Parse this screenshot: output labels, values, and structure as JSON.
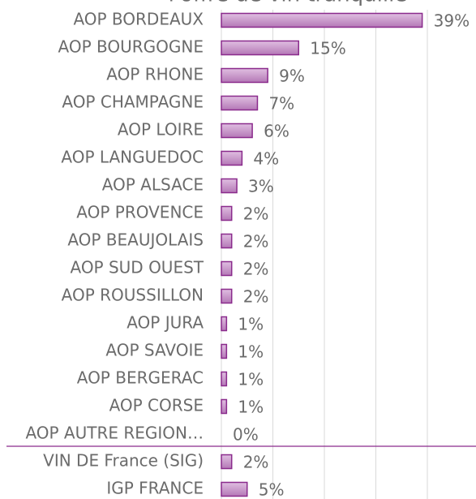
{
  "chart_data": {
    "type": "bar",
    "orientation": "horizontal",
    "title": "l'offre de vin tranquille",
    "categories": [
      "AOP BORDEAUX",
      "AOP BOURGOGNE",
      "AOP RHONE",
      "AOP CHAMPAGNE",
      "AOP LOIRE",
      "AOP LANGUEDOC",
      "AOP ALSACE",
      "AOP PROVENCE",
      "AOP BEAUJOLAIS",
      "AOP SUD OUEST",
      "AOP ROUSSILLON",
      "AOP JURA",
      "AOP SAVOIE",
      "AOP BERGERAC",
      "AOP CORSE",
      "AOP AUTRE REGION…",
      "VIN DE France (SIG)",
      "IGP FRANCE"
    ],
    "values": [
      39,
      15,
      9,
      7,
      6,
      4,
      3,
      2,
      2,
      2,
      2,
      1,
      1,
      1,
      1,
      0,
      2,
      5
    ],
    "value_labels": [
      "39%",
      "15%",
      "9%",
      "7%",
      "6%",
      "4%",
      "3%",
      "2%",
      "2%",
      "2%",
      "2%",
      "1%",
      "1%",
      "1%",
      "1%",
      "0%",
      "2%",
      "5%"
    ],
    "color": "#c48ec6",
    "edge_color": "#8a2b8c",
    "xlim": [
      0,
      49
    ],
    "xticks": [
      0,
      10,
      20,
      30,
      40
    ],
    "grid": true
  }
}
